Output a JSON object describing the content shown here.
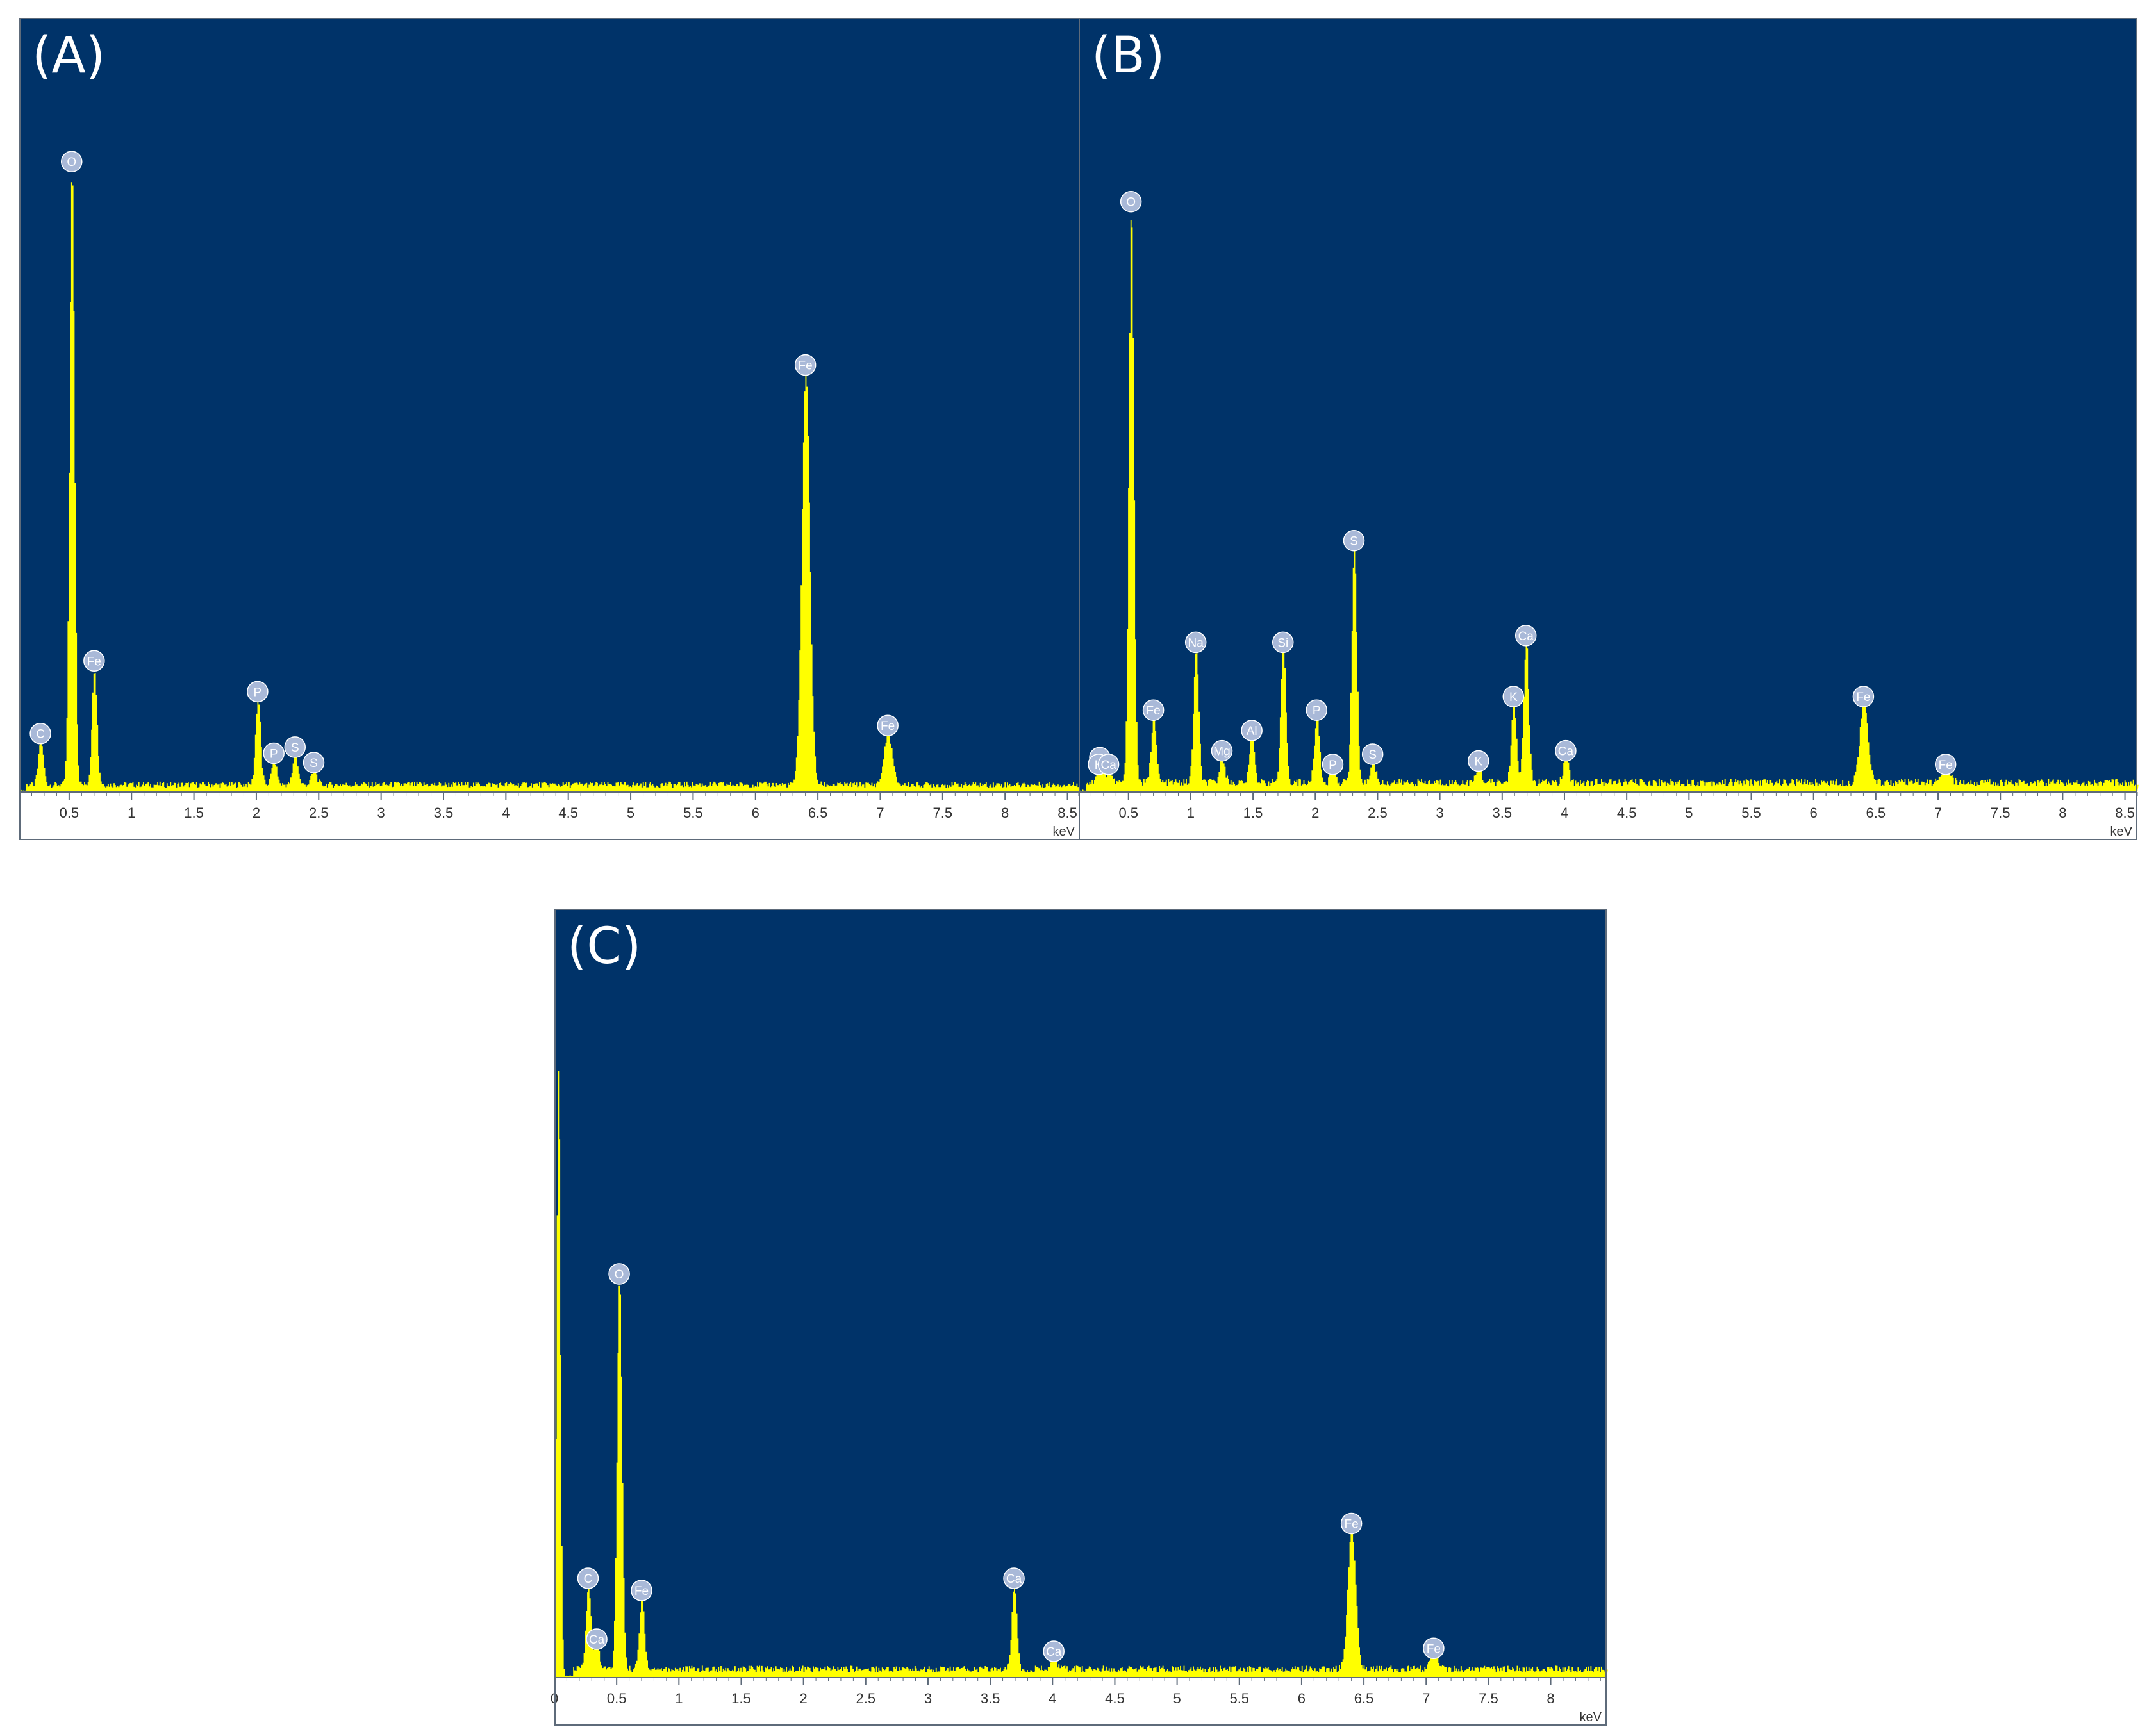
{
  "figure": {
    "background_color": "#ffffff",
    "plot_background_color": "#003369",
    "spectrum_color": "#ffff00",
    "axis_color": "#5e6b7a",
    "marker_fill": "#a9b9d8",
    "marker_text_color": "#ffffff"
  },
  "chart_data": [
    {
      "type": "area",
      "panel_label": "(A)",
      "x_unit_label": "keV",
      "x_range": [
        0.1,
        8.6
      ],
      "x_ticks": [
        "0.5",
        "1",
        "1.5",
        "2",
        "2.5",
        "3",
        "3.5",
        "4",
        "4.5",
        "5",
        "5.5",
        "6",
        "6.5",
        "7",
        "7.5",
        "8",
        "8.5"
      ],
      "y_range": [
        0,
        1.1
      ],
      "y_ticks_shown": false,
      "baseline": 0.012,
      "peaks": [
        {
          "element": "C",
          "x": 0.27,
          "y": 0.072
        },
        {
          "element": "O",
          "x": 0.52,
          "y": 1.0
        },
        {
          "element": "Fe",
          "x": 0.7,
          "y": 0.19
        },
        {
          "element": "P",
          "x": 2.01,
          "y": 0.14
        },
        {
          "element": "P",
          "x": 2.14,
          "y": 0.04
        },
        {
          "element": "S",
          "x": 2.31,
          "y": 0.05
        },
        {
          "element": "S",
          "x": 2.46,
          "y": 0.025
        },
        {
          "element": "Fe",
          "x": 6.4,
          "y": 0.67
        },
        {
          "element": "Fe",
          "x": 7.06,
          "y": 0.085
        }
      ]
    },
    {
      "type": "area",
      "panel_label": "(B)",
      "x_unit_label": "keV",
      "x_range": [
        0.1,
        8.6
      ],
      "x_ticks": [
        "0.5",
        "1",
        "1.5",
        "2",
        "2.5",
        "3",
        "3.5",
        "4",
        "4.5",
        "5",
        "5.5",
        "6",
        "6.5",
        "7",
        "7.5",
        "8",
        "8.5"
      ],
      "y_range": [
        0,
        1.0
      ],
      "y_ticks_shown": false,
      "baseline": 0.014,
      "peaks": [
        {
          "element": "C",
          "x": 0.27,
          "y": 0.03
        },
        {
          "element": "K",
          "x": 0.26,
          "y": 0.02
        },
        {
          "element": "Ca",
          "x": 0.34,
          "y": 0.02
        },
        {
          "element": "O",
          "x": 0.52,
          "y": 0.85
        },
        {
          "element": "Fe",
          "x": 0.7,
          "y": 0.1
        },
        {
          "element": "Na",
          "x": 1.04,
          "y": 0.2
        },
        {
          "element": "Mg",
          "x": 1.25,
          "y": 0.04
        },
        {
          "element": "Al",
          "x": 1.49,
          "y": 0.07
        },
        {
          "element": "Si",
          "x": 1.74,
          "y": 0.2
        },
        {
          "element": "P",
          "x": 2.01,
          "y": 0.1
        },
        {
          "element": "P",
          "x": 2.14,
          "y": 0.02
        },
        {
          "element": "S",
          "x": 2.31,
          "y": 0.35
        },
        {
          "element": "S",
          "x": 2.46,
          "y": 0.035
        },
        {
          "element": "K",
          "x": 3.31,
          "y": 0.025
        },
        {
          "element": "K",
          "x": 3.59,
          "y": 0.12
        },
        {
          "element": "Ca",
          "x": 3.69,
          "y": 0.21
        },
        {
          "element": "Ca",
          "x": 4.01,
          "y": 0.04
        },
        {
          "element": "Fe",
          "x": 6.4,
          "y": 0.12
        },
        {
          "element": "Fe",
          "x": 7.06,
          "y": 0.02
        }
      ]
    },
    {
      "type": "area",
      "panel_label": "(C)",
      "x_unit_label": "keV",
      "x_range": [
        0.0,
        8.45
      ],
      "x_ticks": [
        "0",
        "0.5",
        "1",
        "1.5",
        "2",
        "2.5",
        "3",
        "3.5",
        "4",
        "4.5",
        "5",
        "5.5",
        "6",
        "6.5",
        "7",
        "7.5",
        "8"
      ],
      "y_range": [
        0,
        1.0
      ],
      "y_ticks_shown": false,
      "baseline": 0.014,
      "peaks": [
        {
          "element": "",
          "x": 0.03,
          "y": 1.0
        },
        {
          "element": "C",
          "x": 0.27,
          "y": 0.14
        },
        {
          "element": "Ca",
          "x": 0.34,
          "y": 0.04
        },
        {
          "element": "O",
          "x": 0.52,
          "y": 0.64
        },
        {
          "element": "Fe",
          "x": 0.7,
          "y": 0.12
        },
        {
          "element": "Ca",
          "x": 3.69,
          "y": 0.14
        },
        {
          "element": "Ca",
          "x": 4.01,
          "y": 0.02
        },
        {
          "element": "Fe",
          "x": 6.4,
          "y": 0.23
        },
        {
          "element": "Fe",
          "x": 7.06,
          "y": 0.025
        }
      ]
    }
  ]
}
